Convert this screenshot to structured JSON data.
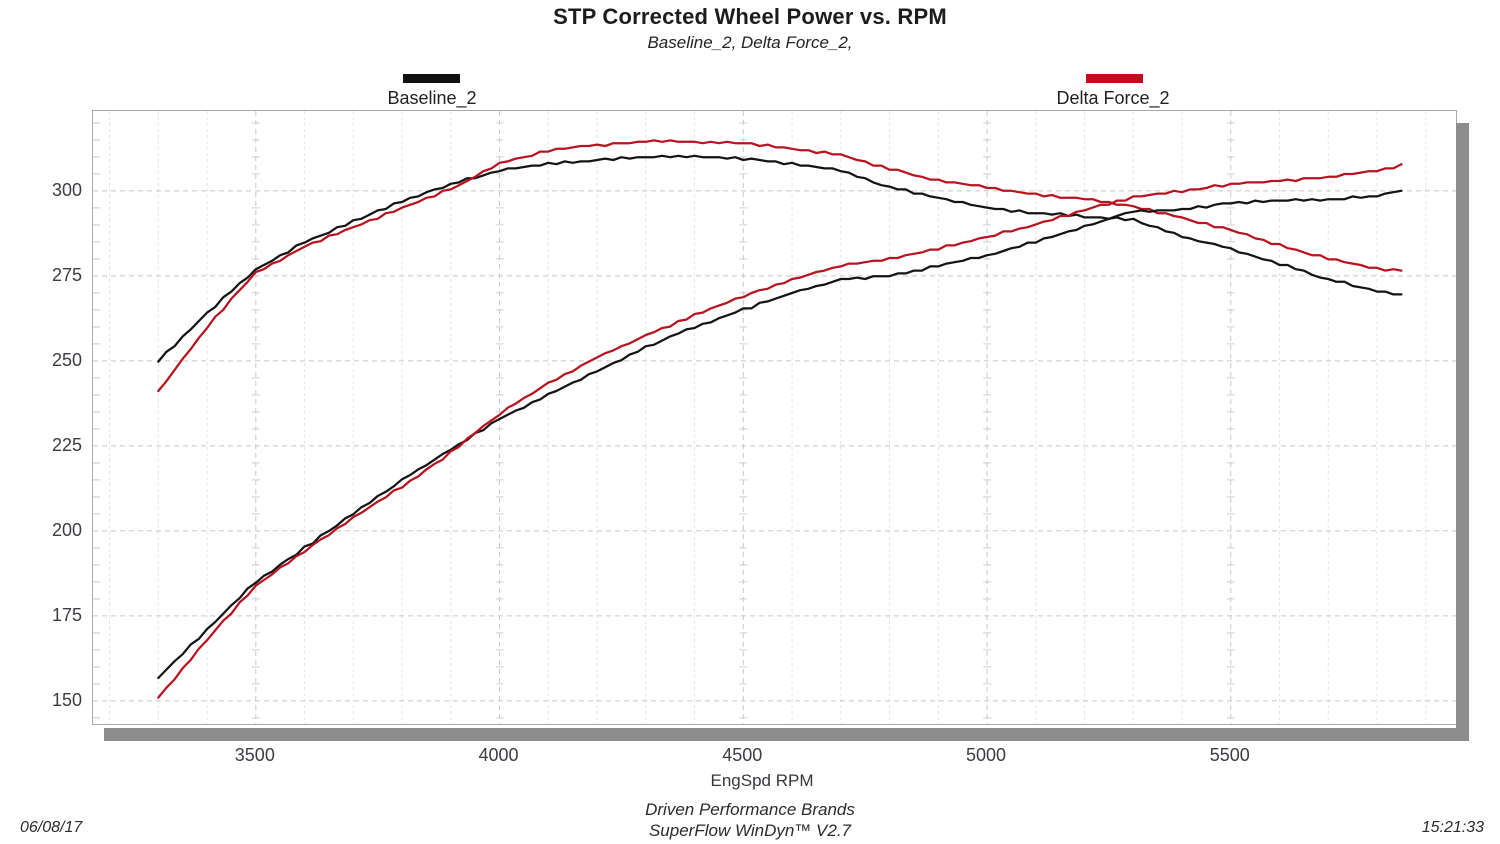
{
  "header": {
    "title": "STP Corrected Wheel Power vs. RPM",
    "subtitle": "Baseline_2, Delta Force_2,"
  },
  "legend": [
    {
      "label": "Baseline_2",
      "color": "#111111"
    },
    {
      "label": "Delta Force_2",
      "color": "#c00d1e"
    }
  ],
  "footer": {
    "brand": "Driven Performance Brands",
    "software": "SuperFlow WinDyn™ V2.7",
    "date": "06/08/17",
    "time": "15:21:33"
  },
  "chart_data": {
    "type": "line",
    "title": "STP Corrected Wheel Power vs. RPM",
    "subtitle": "Baseline_2, Delta Force_2,",
    "xlabel": "EngSpd  RPM",
    "ylabel": "",
    "xlim": [
      3166,
      5962
    ],
    "ylim": [
      143.2,
      323.5
    ],
    "x_ticks": [
      3500,
      4000,
      4500,
      5000,
      5500
    ],
    "y_ticks": [
      150,
      175,
      200,
      225,
      250,
      275,
      300
    ],
    "x_minor_step": 100,
    "y_minor_step": 5,
    "grid": "on",
    "legend_position": "top",
    "x": [
      3300,
      3400,
      3500,
      3600,
      3700,
      3800,
      3900,
      4000,
      4100,
      4200,
      4300,
      4400,
      4500,
      4600,
      4700,
      4800,
      4900,
      5000,
      5100,
      5200,
      5300,
      5400,
      5500,
      5600,
      5700,
      5800,
      5850
    ],
    "series": [
      {
        "name": "Baseline_2 torque",
        "color": "#141414",
        "values": [
          250,
          264,
          277,
          285,
          291,
          297,
          302,
          306,
          308,
          309,
          310,
          310,
          309.5,
          308,
          306,
          301,
          298,
          295,
          293.5,
          292.5,
          291.5,
          286.5,
          283,
          278.5,
          274,
          270.5,
          269.5
        ]
      },
      {
        "name": "Delta Force_2 torque",
        "color": "#b81321",
        "values": [
          241,
          260,
          276,
          283.5,
          289.5,
          295,
          300.5,
          308,
          312,
          313.5,
          314.5,
          314.5,
          314,
          312.5,
          310.5,
          306.5,
          303,
          301,
          299,
          297.5,
          295.5,
          292,
          288.5,
          284,
          280,
          277,
          276.5
        ]
      },
      {
        "name": "Baseline_2 power",
        "color": "#141414",
        "values": [
          157,
          171,
          185,
          195,
          205,
          215,
          224,
          233,
          240,
          247,
          254,
          260,
          265,
          270,
          274,
          275,
          278,
          281,
          285,
          289.5,
          294,
          294.5,
          296.5,
          297,
          297.5,
          298.5,
          300
        ]
      },
      {
        "name": "Delta Force_2 power",
        "color": "#b81321",
        "values": [
          151,
          168,
          184,
          194,
          204,
          213,
          223,
          234.5,
          243.5,
          251,
          257.5,
          263.5,
          269,
          274,
          278,
          280,
          283,
          286.5,
          290,
          294.5,
          298,
          300,
          302,
          303,
          304,
          306,
          307.5
        ]
      }
    ]
  }
}
